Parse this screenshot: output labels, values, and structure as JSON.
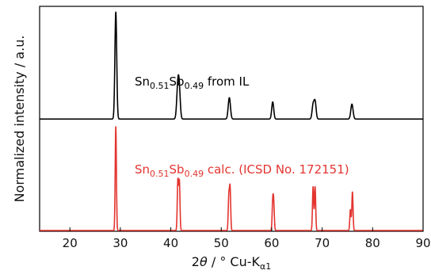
{
  "chart_data": {
    "type": "line",
    "xlabel": {
      "prefix": "2",
      "theta": "θ",
      "slash": " / ° Cu-K",
      "sub": "α1"
    },
    "ylabel": "Normalized intensity / a.u.",
    "xlim": [
      14,
      90
    ],
    "xticks": [
      20,
      30,
      40,
      50,
      60,
      70,
      80,
      90
    ],
    "grid": false,
    "legend": "none",
    "annotations": [
      {
        "parts": [
          {
            "t": "Sn"
          },
          {
            "t": "0.51",
            "sub": true
          },
          {
            "t": "Sb"
          },
          {
            "t": "0.49",
            "sub": true
          },
          {
            "t": "  from IL"
          }
        ],
        "color": "#000000"
      },
      {
        "parts": [
          {
            "t": "Sn"
          },
          {
            "t": "0.51",
            "sub": true
          },
          {
            "t": "Sb"
          },
          {
            "t": "0.49",
            "sub": true
          },
          {
            "t": " calc. (ICSD No. 172151)"
          }
        ],
        "color": "#e3342f"
      }
    ],
    "series": [
      {
        "color": "#000000",
        "baseline": 0.02,
        "peaks": [
          {
            "x": 29.1,
            "h": 1.0,
            "w": 0.18
          },
          {
            "x": 41.4,
            "h": 0.31,
            "w": 0.22
          },
          {
            "x": 41.7,
            "h": 0.22,
            "w": 0.2
          },
          {
            "x": 51.6,
            "h": 0.2,
            "w": 0.22
          },
          {
            "x": 60.2,
            "h": 0.16,
            "w": 0.2
          },
          {
            "x": 68.2,
            "h": 0.13,
            "w": 0.2
          },
          {
            "x": 68.6,
            "h": 0.16,
            "w": 0.2
          },
          {
            "x": 75.9,
            "h": 0.14,
            "w": 0.22
          }
        ]
      },
      {
        "color": "#e3342f",
        "baseline": 0.0,
        "peaks": [
          {
            "x": 29.1,
            "h": 1.0,
            "w": 0.12
          },
          {
            "x": 41.4,
            "h": 0.48,
            "w": 0.12
          },
          {
            "x": 41.7,
            "h": 0.47,
            "w": 0.12
          },
          {
            "x": 51.5,
            "h": 0.32,
            "w": 0.12
          },
          {
            "x": 51.75,
            "h": 0.4,
            "w": 0.12
          },
          {
            "x": 60.2,
            "h": 0.26,
            "w": 0.12
          },
          {
            "x": 60.4,
            "h": 0.24,
            "w": 0.12
          },
          {
            "x": 68.2,
            "h": 0.42,
            "w": 0.12
          },
          {
            "x": 68.6,
            "h": 0.42,
            "w": 0.12
          },
          {
            "x": 75.6,
            "h": 0.2,
            "w": 0.12
          },
          {
            "x": 76.0,
            "h": 0.37,
            "w": 0.12
          }
        ]
      }
    ]
  }
}
